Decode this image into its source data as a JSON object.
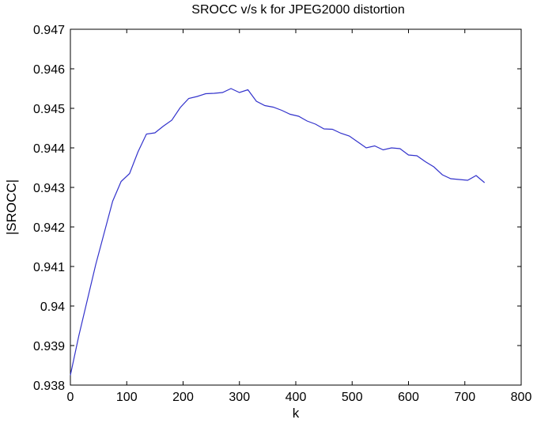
{
  "chart_data": {
    "type": "line",
    "title": "SROCC v/s k for JPEG2000 distortion",
    "xlabel": "k",
    "ylabel": "|SROCC|",
    "xlim": [
      0,
      800
    ],
    "ylim": [
      0.938,
      0.947
    ],
    "x_ticks": [
      "0",
      "100",
      "200",
      "300",
      "400",
      "500",
      "600",
      "700",
      "800"
    ],
    "y_ticks": [
      "0.938",
      "0.939",
      "0.94",
      "0.941",
      "0.942",
      "0.943",
      "0.944",
      "0.945",
      "0.946",
      "0.947"
    ],
    "grid": false,
    "line_color": "#3333cc",
    "series": [
      {
        "x": [
          0,
          15,
          30,
          45,
          60,
          75,
          90,
          105,
          120,
          135,
          150,
          165,
          180,
          195,
          210,
          225,
          240,
          255,
          270,
          285,
          300,
          315,
          330,
          345,
          360,
          375,
          390,
          405,
          420,
          435,
          450,
          465,
          480,
          495,
          510,
          525,
          540,
          555,
          570,
          585,
          600,
          615,
          630,
          645,
          660,
          675,
          690,
          705,
          720,
          735
        ],
        "y": [
          0.93825,
          0.93925,
          0.94015,
          0.94105,
          0.94185,
          0.94265,
          0.94315,
          0.94335,
          0.9439,
          0.94435,
          0.94438,
          0.94455,
          0.9447,
          0.94502,
          0.94525,
          0.9453,
          0.94537,
          0.94538,
          0.9454,
          0.9455,
          0.9454,
          0.94547,
          0.94518,
          0.94507,
          0.94503,
          0.94495,
          0.94485,
          0.9448,
          0.94468,
          0.9446,
          0.94448,
          0.94447,
          0.94437,
          0.9443,
          0.94415,
          0.944,
          0.94405,
          0.94395,
          0.944,
          0.94398,
          0.94382,
          0.9438,
          0.94365,
          0.94352,
          0.94332,
          0.94322,
          0.9432,
          0.94318,
          0.9433,
          0.94312
        ]
      }
    ]
  }
}
